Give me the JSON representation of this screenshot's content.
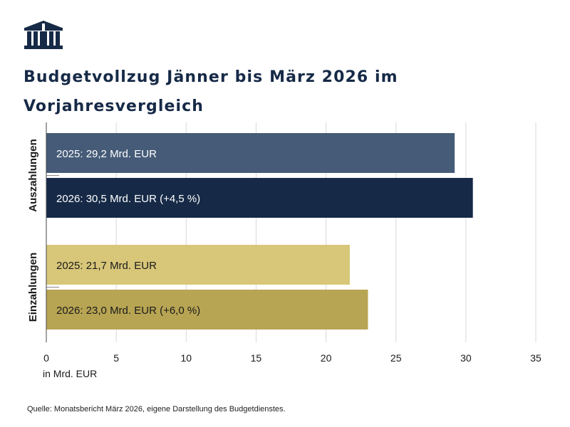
{
  "title": "Budgetvollzug Jänner bis März 2026 im Vorjahresvergleich",
  "source": "Quelle: Monatsbericht März 2026, eigene Darstellung des Budgetdienstes.",
  "logo": "parliament-building-icon",
  "colors": {
    "title": "#162a47",
    "out_2025": "#455b78",
    "out_2026": "#162a47",
    "in_2025": "#d8c679",
    "in_2026": "#b8a553"
  },
  "chart_data": {
    "type": "bar",
    "orientation": "horizontal",
    "title": "Budgetvollzug Jänner bis März 2026 im Vorjahresvergleich",
    "xlabel": "in Mrd. EUR",
    "ylabel": "",
    "xlim": [
      0,
      35
    ],
    "xticks": [
      0,
      5,
      10,
      15,
      20,
      25,
      30,
      35
    ],
    "grid": true,
    "legend": "none",
    "groups": [
      {
        "name": "Auszahlungen",
        "bars": [
          {
            "year": "2025",
            "value": 29.2,
            "label": "2025: 29,2 Mrd. EUR",
            "color": "#455b78",
            "text_color": "#ffffff"
          },
          {
            "year": "2026",
            "value": 30.5,
            "label": "2026: 30,5 Mrd. EUR (+4,5 %)",
            "color": "#162a47",
            "text_color": "#ffffff"
          }
        ]
      },
      {
        "name": "Einzahlungen",
        "bars": [
          {
            "year": "2025",
            "value": 21.7,
            "label": "2025: 21,7 Mrd. EUR",
            "color": "#d8c679",
            "text_color": "#1a1a1a"
          },
          {
            "year": "2026",
            "value": 23.0,
            "label": "2026: 23,0 Mrd. EUR (+6,0 %)",
            "color": "#b8a553",
            "text_color": "#1a1a1a"
          }
        ]
      }
    ]
  }
}
